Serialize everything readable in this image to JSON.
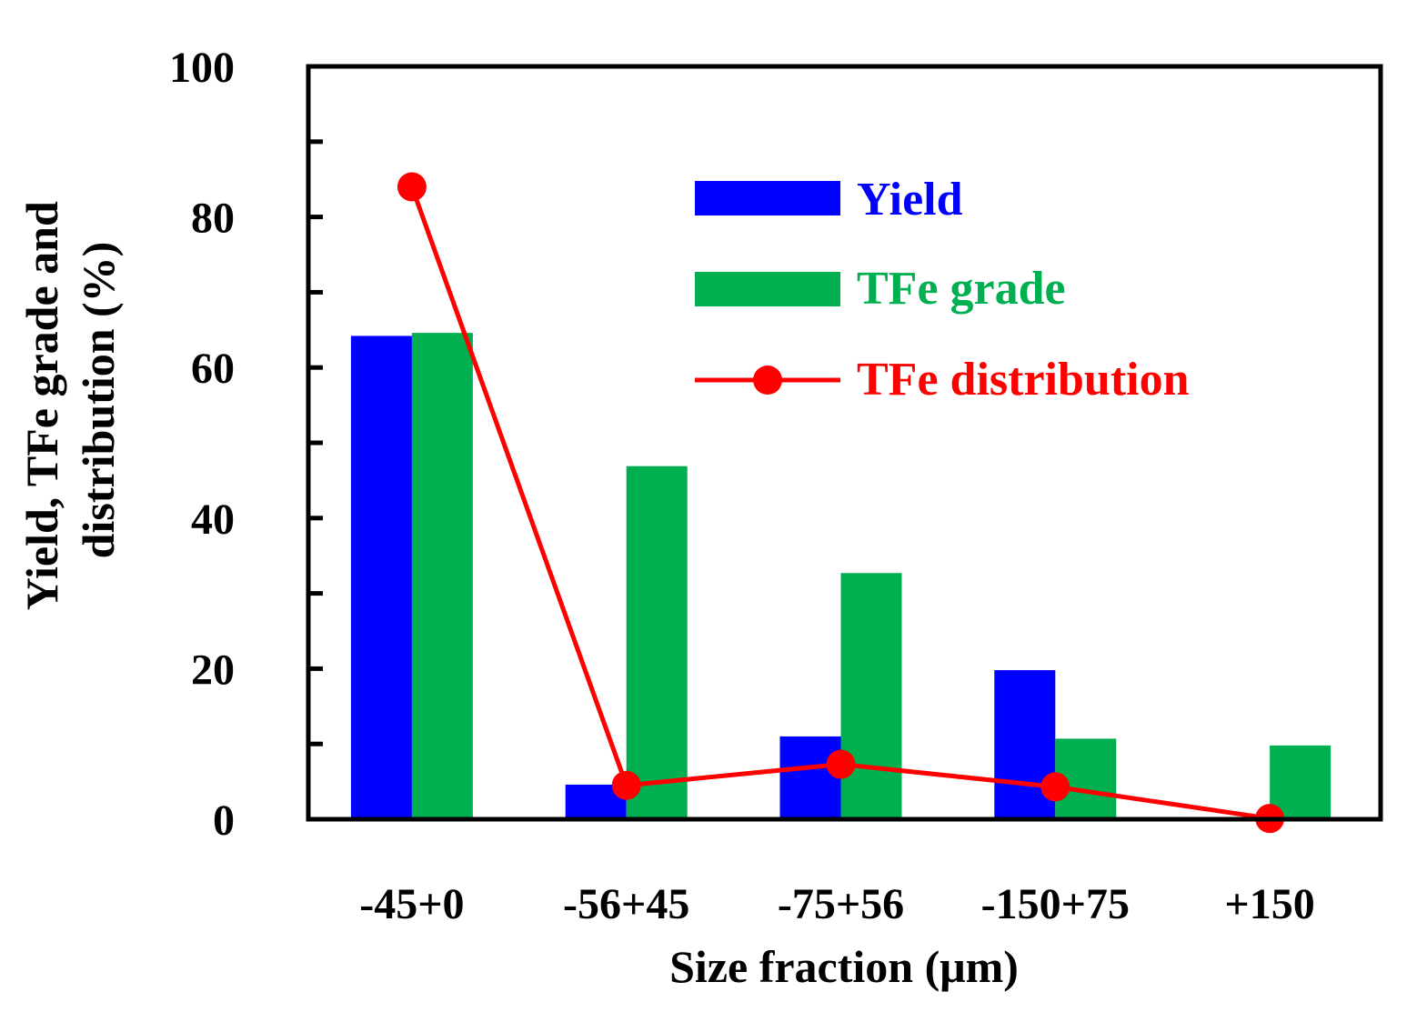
{
  "chart_data": {
    "type": "bar",
    "categories": [
      "-45+0",
      "-56+45",
      "-75+56",
      "-150+75",
      "+150"
    ],
    "series": [
      {
        "name": "Yield",
        "kind": "bar",
        "color": "#0000ff",
        "values": [
          64.2,
          4.6,
          11.0,
          19.8,
          0
        ]
      },
      {
        "name": "TFe grade",
        "kind": "bar",
        "color": "#00b050",
        "values": [
          64.6,
          46.9,
          32.7,
          10.7,
          9.8
        ]
      },
      {
        "name": "TFe distribution",
        "kind": "line",
        "color": "#ff0000",
        "values": [
          84.0,
          4.5,
          7.3,
          4.3,
          0.1
        ]
      }
    ],
    "xlabel": "Size fraction (μm)",
    "ylabel_lines": [
      "Yield, TFe grade and",
      "distribution (%)"
    ],
    "ylim": [
      0,
      100
    ],
    "yticks": [
      0,
      20,
      40,
      60,
      80,
      100
    ],
    "yticks_minor": [
      10,
      30,
      50,
      70,
      90
    ],
    "ytick_labels": [
      "0",
      "20",
      "40",
      "60",
      "80",
      "100"
    ],
    "legend_position": "upper-right",
    "grid": false
  }
}
